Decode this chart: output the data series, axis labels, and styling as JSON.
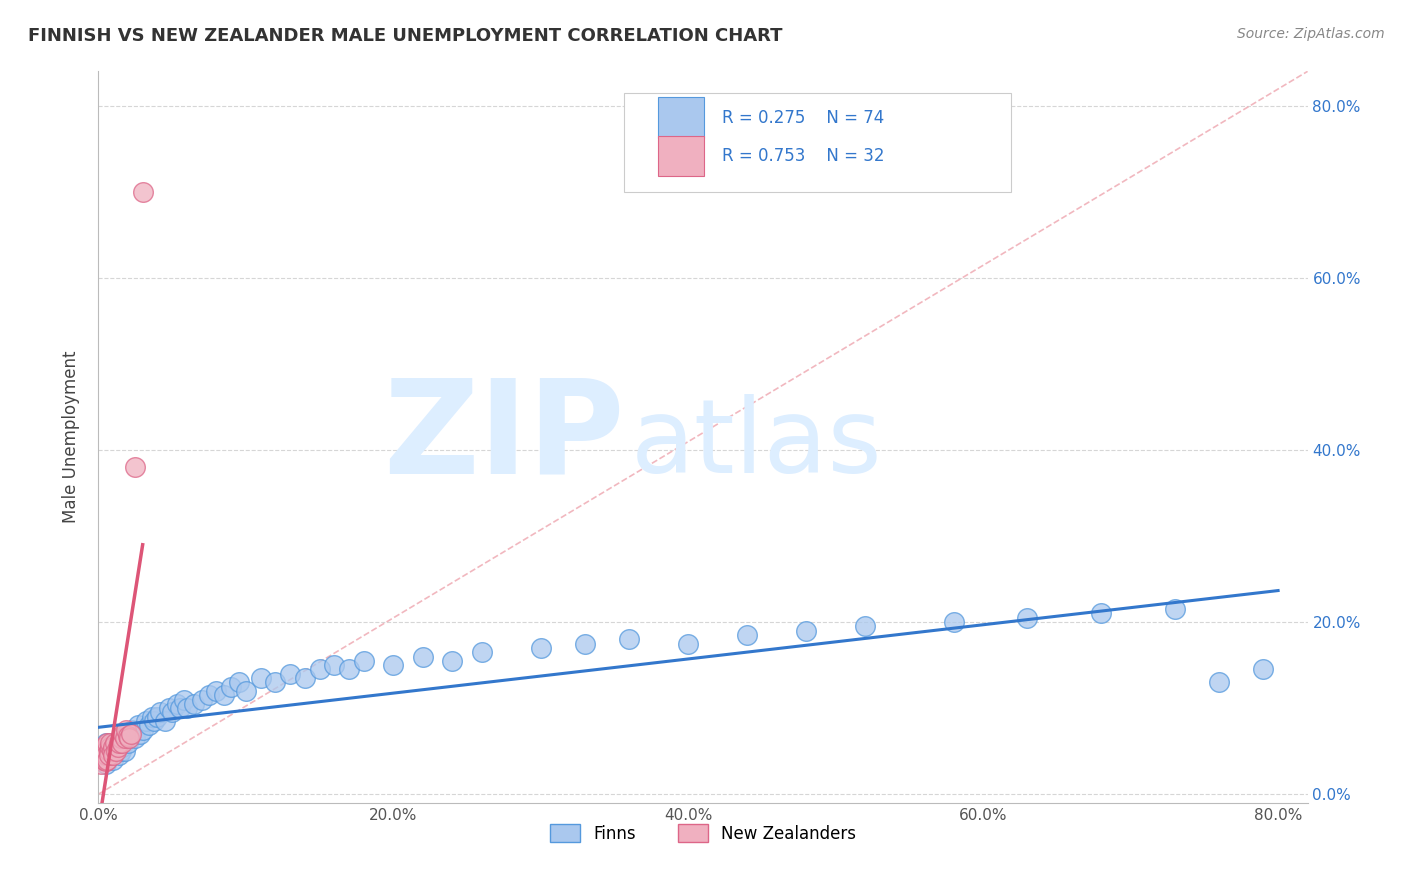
{
  "title": "FINNISH VS NEW ZEALANDER MALE UNEMPLOYMENT CORRELATION CHART",
  "source_text": "Source: ZipAtlas.com",
  "ylabel": "Male Unemployment",
  "x_tick_labels": [
    "0.0%",
    "20.0%",
    "40.0%",
    "60.0%",
    "80.0%"
  ],
  "y_tick_labels": [
    "0.0%",
    "20.0%",
    "40.0%",
    "60.0%",
    "80.0%"
  ],
  "x_tick_vals": [
    0.0,
    0.2,
    0.4,
    0.6,
    0.8
  ],
  "y_tick_vals": [
    0.0,
    0.2,
    0.4,
    0.6,
    0.8
  ],
  "xmin": 0.0,
  "xmax": 0.82,
  "ymin": -0.01,
  "ymax": 0.84,
  "finns_color": "#aac8ee",
  "finns_edge_color": "#5599dd",
  "nz_color": "#f0b0c0",
  "nz_edge_color": "#dd6688",
  "trend_finn_color": "#3377cc",
  "trend_nz_color": "#dd5577",
  "ref_line_color": "#f0b0b8",
  "grid_color": "#cccccc",
  "watermark_color": "#ddeeff",
  "watermark_zip": "ZIP",
  "watermark_atlas": "atlas",
  "finn_label": "Finns",
  "nz_label": "New Zealanders",
  "finn_R": 0.275,
  "finn_N": 74,
  "nz_R": 0.753,
  "nz_N": 32,
  "legend_color": "#3377cc",
  "finns_x": [
    0.003,
    0.004,
    0.005,
    0.005,
    0.006,
    0.007,
    0.008,
    0.008,
    0.009,
    0.01,
    0.01,
    0.012,
    0.013,
    0.014,
    0.015,
    0.015,
    0.016,
    0.017,
    0.018,
    0.019,
    0.02,
    0.021,
    0.022,
    0.023,
    0.025,
    0.027,
    0.028,
    0.03,
    0.032,
    0.034,
    0.036,
    0.038,
    0.04,
    0.042,
    0.045,
    0.048,
    0.05,
    0.053,
    0.055,
    0.058,
    0.06,
    0.065,
    0.07,
    0.075,
    0.08,
    0.085,
    0.09,
    0.095,
    0.1,
    0.11,
    0.12,
    0.13,
    0.14,
    0.15,
    0.16,
    0.17,
    0.18,
    0.2,
    0.22,
    0.24,
    0.26,
    0.3,
    0.33,
    0.36,
    0.4,
    0.44,
    0.48,
    0.52,
    0.58,
    0.63,
    0.68,
    0.73,
    0.76,
    0.79
  ],
  "finns_y": [
    0.04,
    0.05,
    0.035,
    0.06,
    0.04,
    0.05,
    0.045,
    0.055,
    0.05,
    0.04,
    0.06,
    0.05,
    0.055,
    0.045,
    0.05,
    0.065,
    0.055,
    0.06,
    0.05,
    0.07,
    0.06,
    0.065,
    0.07,
    0.075,
    0.065,
    0.08,
    0.07,
    0.075,
    0.085,
    0.08,
    0.09,
    0.085,
    0.09,
    0.095,
    0.085,
    0.1,
    0.095,
    0.105,
    0.1,
    0.11,
    0.1,
    0.105,
    0.11,
    0.115,
    0.12,
    0.115,
    0.125,
    0.13,
    0.12,
    0.135,
    0.13,
    0.14,
    0.135,
    0.145,
    0.15,
    0.145,
    0.155,
    0.15,
    0.16,
    0.155,
    0.165,
    0.17,
    0.175,
    0.18,
    0.175,
    0.185,
    0.19,
    0.195,
    0.2,
    0.205,
    0.21,
    0.215,
    0.13,
    0.145
  ],
  "nz_x": [
    0.001,
    0.002,
    0.003,
    0.003,
    0.004,
    0.004,
    0.005,
    0.005,
    0.005,
    0.006,
    0.006,
    0.007,
    0.007,
    0.008,
    0.008,
    0.009,
    0.01,
    0.01,
    0.011,
    0.012,
    0.013,
    0.014,
    0.015,
    0.016,
    0.017,
    0.018,
    0.019,
    0.02,
    0.021,
    0.022,
    0.025,
    0.03
  ],
  "nz_y": [
    0.04,
    0.035,
    0.045,
    0.05,
    0.04,
    0.055,
    0.038,
    0.05,
    0.045,
    0.04,
    0.06,
    0.05,
    0.045,
    0.055,
    0.06,
    0.05,
    0.055,
    0.045,
    0.06,
    0.05,
    0.055,
    0.06,
    0.065,
    0.06,
    0.07,
    0.065,
    0.075,
    0.068,
    0.065,
    0.07,
    0.38,
    0.7
  ]
}
